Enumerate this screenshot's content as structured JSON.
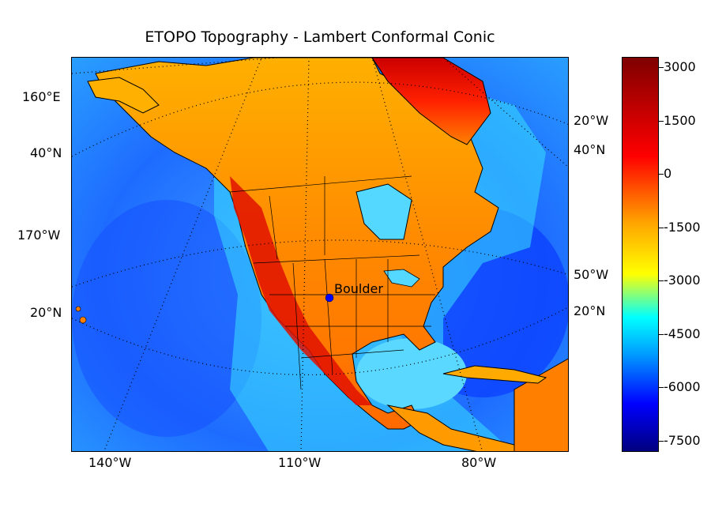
{
  "title": "ETOPO Topography - Lambert Conformal Conic",
  "map": {
    "projection": "Lambert Conformal Conic",
    "colormap": [
      "#00007f",
      "#0000ff",
      "#00a0ff",
      "#00ffff",
      "#ffff00",
      "#ffa500",
      "#ff0000",
      "#7f0000"
    ],
    "marker": {
      "name": "Boulder",
      "color": "#0000ff"
    },
    "left_labels": [
      "160°E",
      "40°N",
      "170°W",
      "20°N"
    ],
    "right_labels": [
      "20°W",
      "40°N",
      "50°W",
      "20°N"
    ],
    "bottom_labels": [
      "140°W",
      "110°W",
      "80°W"
    ]
  },
  "colorbar": {
    "ticks": [
      "3000",
      "1500",
      "0",
      "-1500",
      "-3000",
      "-4500",
      "-6000",
      "-7500"
    ]
  }
}
